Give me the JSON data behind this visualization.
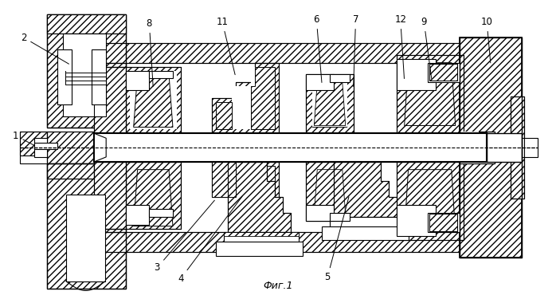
{
  "caption": "Фиг.1",
  "bg_color": "#ffffff",
  "fig_width": 6.98,
  "fig_height": 3.8,
  "dpi": 100
}
